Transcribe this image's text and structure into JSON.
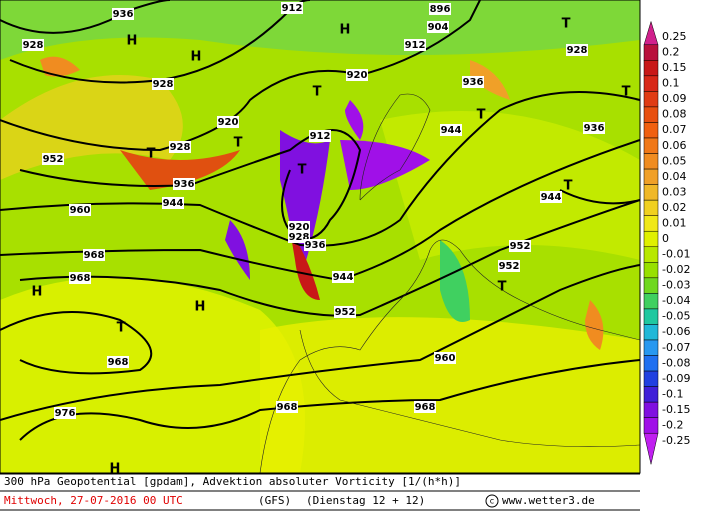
{
  "map": {
    "caption": "300 hPa Geopotential [gpdam], Advektion absoluter Vorticity [1/(h*h)]",
    "date": "Mittwoch, 27-07-2016  00 UTC",
    "model": "(GFS)",
    "run": "(Dienstag 12 + 12)",
    "credit": "www.wetter3.de",
    "contour_labels": [
      "936",
      "928",
      "928",
      "912",
      "904",
      "896",
      "912",
      "920",
      "928",
      "936",
      "944",
      "936",
      "920",
      "928",
      "912",
      "952",
      "936",
      "944",
      "960",
      "920",
      "928",
      "936",
      "944",
      "952",
      "944",
      "952",
      "952",
      "968",
      "968",
      "968",
      "960",
      "968",
      "968",
      "976"
    ],
    "systems": [
      "T",
      "H",
      "H",
      "H",
      "T",
      "T",
      "T",
      "T",
      "T",
      "T",
      "T",
      "T",
      "H",
      "H",
      "T",
      "H"
    ]
  },
  "colorbar": {
    "ticks": [
      0.25,
      0.2,
      0.15,
      0.1,
      0.09,
      0.08,
      0.07,
      0.06,
      0.05,
      0.04,
      0.03,
      0.02,
      0.01,
      0,
      -0.01,
      -0.02,
      -0.03,
      -0.04,
      -0.05,
      -0.06,
      -0.07,
      -0.08,
      -0.09,
      -0.1,
      -0.15,
      -0.2,
      -0.25
    ],
    "colors": [
      "#d0208c",
      "#b8103c",
      "#c81818",
      "#d82818",
      "#e03c14",
      "#e85010",
      "#f06010",
      "#f07818",
      "#f08c20",
      "#f0a028",
      "#f0b828",
      "#f0d020",
      "#f0e818",
      "#e0f000",
      "#b8e800",
      "#98e000",
      "#70d820",
      "#40d060",
      "#20c8a0",
      "#20b8d8",
      "#2898f0",
      "#2070f0",
      "#2040e0",
      "#4020d8",
      "#8010e0",
      "#a010e8",
      "#c020f0"
    ]
  }
}
